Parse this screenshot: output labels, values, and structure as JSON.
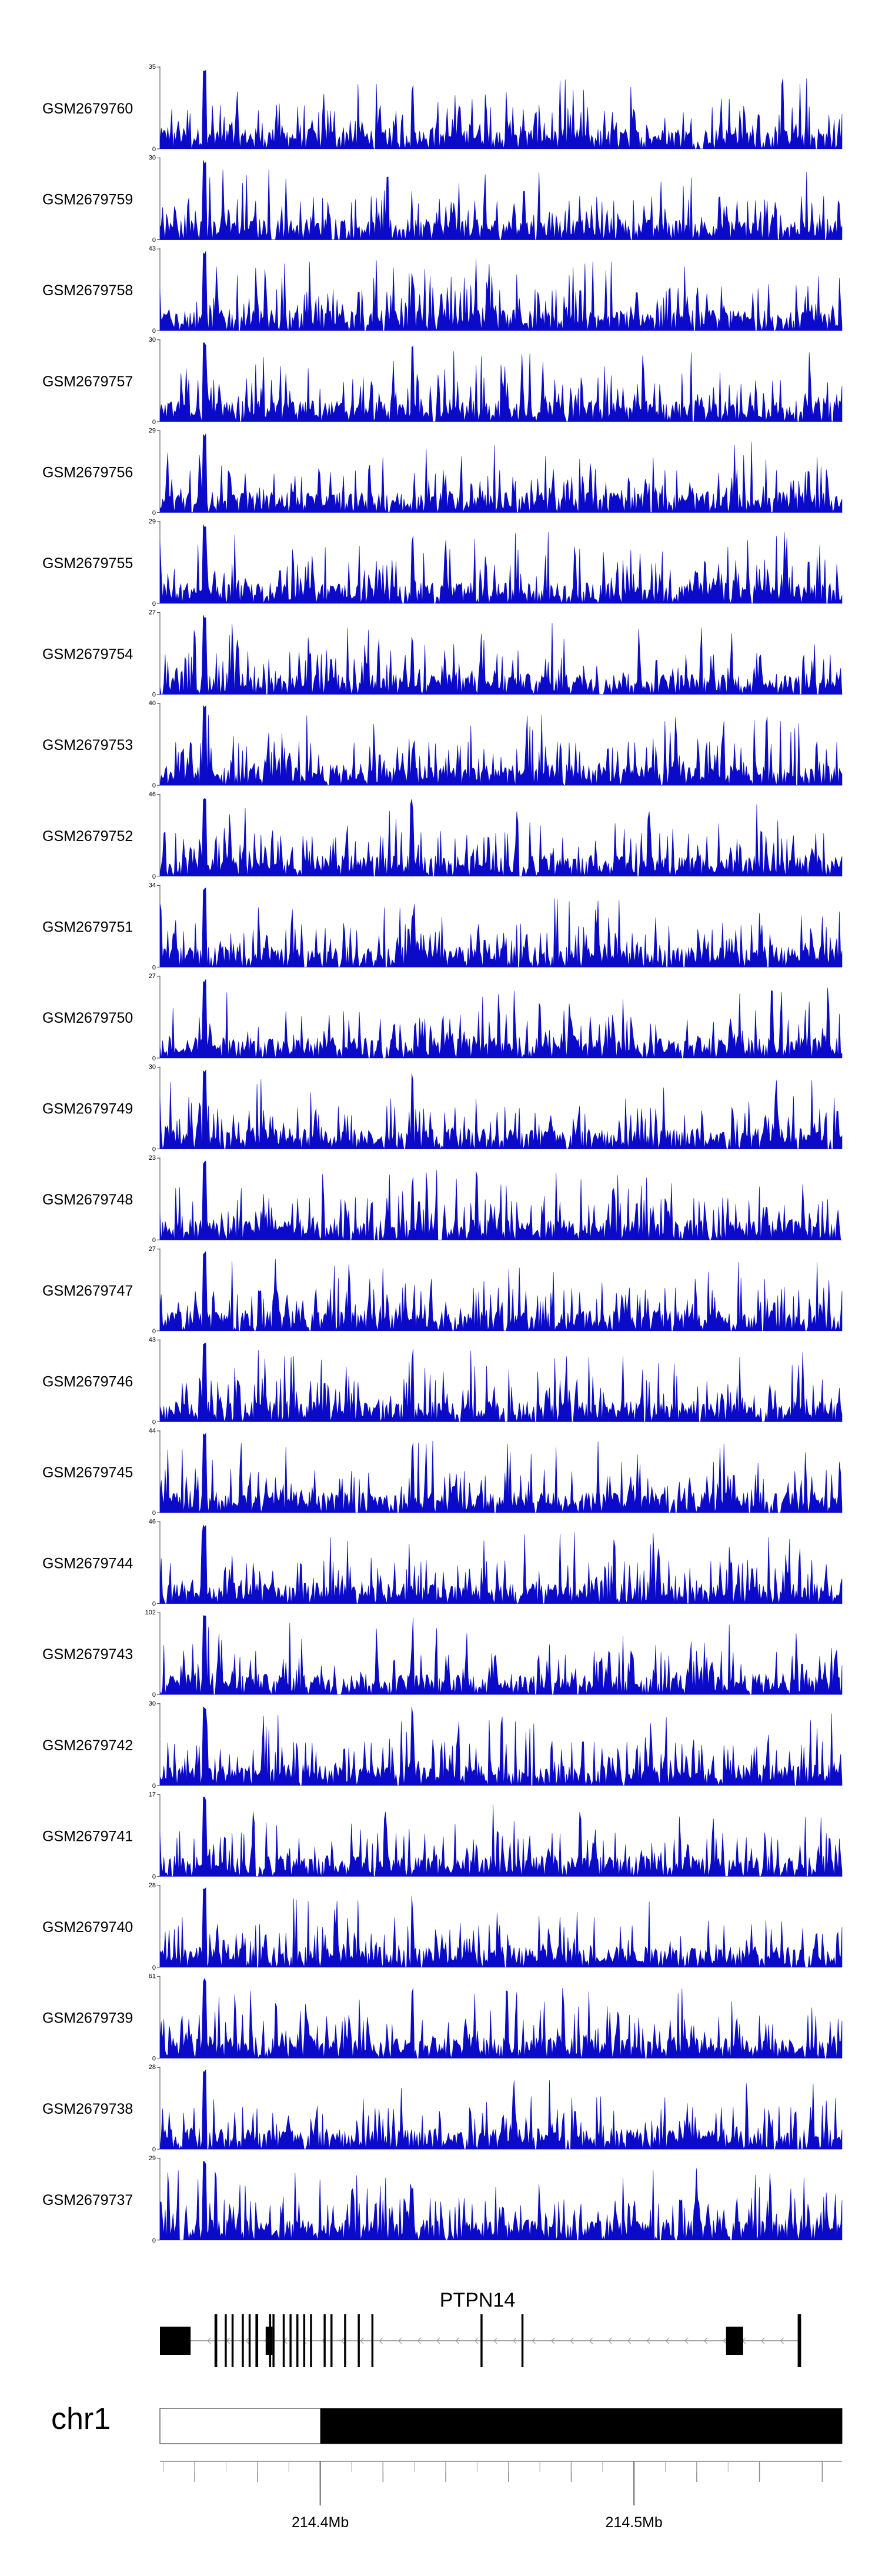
{
  "chart_data": {
    "type": "area",
    "chromosome": "chr1",
    "gene": "PTPN14",
    "strand": "-",
    "series_color": "#0a0ac8",
    "tracks": [
      {
        "name": "GSM2679760",
        "max": 35
      },
      {
        "name": "GSM2679759",
        "max": 30
      },
      {
        "name": "GSM2679758",
        "max": 43
      },
      {
        "name": "GSM2679757",
        "max": 30
      },
      {
        "name": "GSM2679756",
        "max": 29
      },
      {
        "name": "GSM2679755",
        "max": 29
      },
      {
        "name": "GSM2679754",
        "max": 27
      },
      {
        "name": "GSM2679753",
        "max": 40
      },
      {
        "name": "GSM2679752",
        "max": 46
      },
      {
        "name": "GSM2679751",
        "max": 34
      },
      {
        "name": "GSM2679750",
        "max": 27
      },
      {
        "name": "GSM2679749",
        "max": 30
      },
      {
        "name": "GSM2679748",
        "max": 23
      },
      {
        "name": "GSM2679747",
        "max": 27
      },
      {
        "name": "GSM2679746",
        "max": 43
      },
      {
        "name": "GSM2679745",
        "max": 44
      },
      {
        "name": "GSM2679744",
        "max": 46
      },
      {
        "name": "GSM2679743",
        "max": 102
      },
      {
        "name": "GSM2679742",
        "max": 30
      },
      {
        "name": "GSM2679741",
        "max": 17
      },
      {
        "name": "GSM2679740",
        "max": 28
      },
      {
        "name": "GSM2679739",
        "max": 61
      },
      {
        "name": "GSM2679738",
        "max": 28
      },
      {
        "name": "GSM2679737",
        "max": 29
      }
    ],
    "x_ticks": [
      {
        "label": "214.4Mb",
        "frac": 0.235
      },
      {
        "label": "214.5Mb",
        "frac": 0.695
      }
    ],
    "ideogram_band_start_frac": 0.235,
    "peak_fracs": [
      0.065,
      0.37
    ],
    "gene_structure": {
      "exon_fracs": [
        0.0,
        0.08,
        0.095,
        0.105,
        0.12,
        0.13,
        0.14,
        0.155,
        0.16,
        0.165,
        0.18,
        0.19,
        0.2,
        0.21,
        0.22,
        0.24,
        0.25,
        0.27,
        0.29,
        0.31,
        0.47,
        0.53,
        0.83,
        0.935
      ],
      "exon_widths": [
        0.045,
        0.004,
        0.003,
        0.003,
        0.003,
        0.003,
        0.004,
        0.01,
        0.003,
        0.003,
        0.003,
        0.003,
        0.003,
        0.003,
        0.003,
        0.003,
        0.003,
        0.003,
        0.003,
        0.003,
        0.003,
        0.003,
        0.025,
        0.005
      ]
    }
  }
}
